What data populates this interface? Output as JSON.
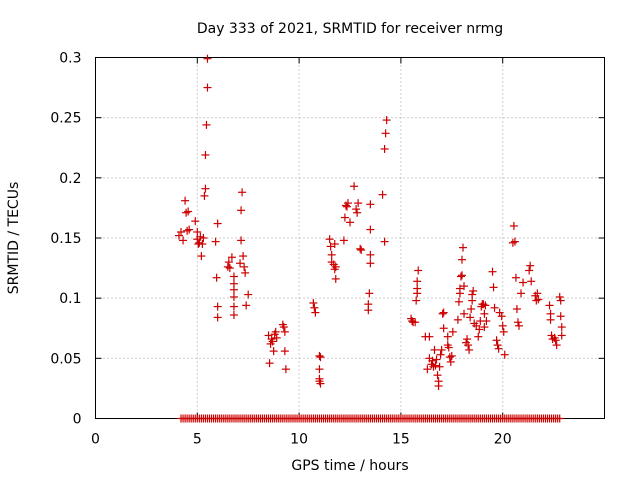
{
  "chart_data": {
    "type": "scatter",
    "title": "Day 333 of 2021, SRMTID for receiver nrmg",
    "xlabel": "GPS time / hours",
    "ylabel": "SRMTID / TECUs",
    "xlim": [
      0,
      25
    ],
    "ylim": [
      0,
      0.3
    ],
    "xticks": [
      0,
      5,
      10,
      15,
      20
    ],
    "yticks": [
      0,
      0.05,
      0.1,
      0.15,
      0.2,
      0.25,
      0.3
    ],
    "xtick_labels": [
      "0",
      "5",
      "10",
      "15",
      "20"
    ],
    "ytick_labels": [
      "0",
      "0.05",
      "0.1",
      "0.15",
      "0.2",
      "0.25",
      "0.3"
    ],
    "grid": true,
    "marker": "+",
    "color": "#cc0000",
    "series": [
      {
        "name": "SRMTID",
        "points": [
          [
            4.1,
            0.152
          ],
          [
            4.2,
            0.155
          ],
          [
            4.3,
            0.148
          ],
          [
            4.4,
            0.181
          ],
          [
            4.45,
            0.171
          ],
          [
            4.5,
            0.156
          ],
          [
            4.55,
            0.172
          ],
          [
            4.6,
            0.157
          ],
          [
            4.9,
            0.164
          ],
          [
            5.0,
            0.149
          ],
          [
            5.0,
            0.155
          ],
          [
            5.05,
            0.145
          ],
          [
            5.1,
            0.146
          ],
          [
            5.15,
            0.151
          ],
          [
            5.2,
            0.135
          ],
          [
            5.25,
            0.145
          ],
          [
            5.3,
            0.15
          ],
          [
            5.35,
            0.185
          ],
          [
            5.4,
            0.191
          ],
          [
            5.4,
            0.219
          ],
          [
            5.45,
            0.244
          ],
          [
            5.5,
            0.275
          ],
          [
            5.5,
            0.299
          ],
          [
            5.9,
            0.147
          ],
          [
            6.0,
            0.162
          ],
          [
            5.95,
            0.117
          ],
          [
            6.0,
            0.093
          ],
          [
            6.0,
            0.084
          ],
          [
            6.5,
            0.126
          ],
          [
            6.55,
            0.13
          ],
          [
            6.6,
            0.125
          ],
          [
            6.7,
            0.134
          ],
          [
            6.8,
            0.118
          ],
          [
            6.8,
            0.112
          ],
          [
            6.8,
            0.107
          ],
          [
            6.8,
            0.101
          ],
          [
            6.8,
            0.093
          ],
          [
            6.8,
            0.086
          ],
          [
            7.1,
            0.129
          ],
          [
            7.15,
            0.148
          ],
          [
            7.15,
            0.173
          ],
          [
            7.2,
            0.188
          ],
          [
            7.25,
            0.135
          ],
          [
            7.3,
            0.126
          ],
          [
            7.35,
            0.121
          ],
          [
            7.4,
            0.094
          ],
          [
            7.5,
            0.103
          ],
          [
            8.5,
            0.069
          ],
          [
            8.55,
            0.046
          ],
          [
            8.6,
            0.062
          ],
          [
            8.65,
            0.066
          ],
          [
            8.7,
            0.064
          ],
          [
            8.75,
            0.056
          ],
          [
            8.8,
            0.07
          ],
          [
            8.85,
            0.072
          ],
          [
            8.9,
            0.067
          ],
          [
            9.2,
            0.078
          ],
          [
            9.25,
            0.076
          ],
          [
            9.3,
            0.072
          ],
          [
            9.3,
            0.056
          ],
          [
            9.35,
            0.041
          ],
          [
            10.7,
            0.096
          ],
          [
            10.75,
            0.092
          ],
          [
            10.8,
            0.088
          ],
          [
            11.0,
            0.052
          ],
          [
            11.05,
            0.051
          ],
          [
            11.0,
            0.041
          ],
          [
            11.0,
            0.033
          ],
          [
            11.0,
            0.031
          ],
          [
            11.05,
            0.029
          ],
          [
            11.5,
            0.149
          ],
          [
            11.55,
            0.143
          ],
          [
            11.6,
            0.136
          ],
          [
            11.6,
            0.13
          ],
          [
            11.7,
            0.128
          ],
          [
            11.75,
            0.124
          ],
          [
            11.8,
            0.116
          ],
          [
            11.8,
            0.126
          ],
          [
            11.75,
            0.145
          ],
          [
            12.2,
            0.148
          ],
          [
            12.25,
            0.167
          ],
          [
            12.3,
            0.177
          ],
          [
            12.35,
            0.176
          ],
          [
            12.4,
            0.179
          ],
          [
            12.5,
            0.163
          ],
          [
            12.7,
            0.193
          ],
          [
            12.8,
            0.174
          ],
          [
            12.85,
            0.171
          ],
          [
            12.9,
            0.179
          ],
          [
            13.0,
            0.141
          ],
          [
            13.05,
            0.14
          ],
          [
            13.4,
            0.095
          ],
          [
            13.4,
            0.09
          ],
          [
            13.45,
            0.104
          ],
          [
            13.5,
            0.129
          ],
          [
            13.5,
            0.136
          ],
          [
            13.5,
            0.157
          ],
          [
            13.5,
            0.178
          ],
          [
            14.1,
            0.186
          ],
          [
            14.2,
            0.147
          ],
          [
            14.2,
            0.224
          ],
          [
            14.25,
            0.237
          ],
          [
            14.3,
            0.248
          ],
          [
            15.5,
            0.083
          ],
          [
            15.55,
            0.081
          ],
          [
            15.6,
            0.08
          ],
          [
            15.7,
            0.08
          ],
          [
            15.75,
            0.098
          ],
          [
            15.8,
            0.104
          ],
          [
            15.8,
            0.108
          ],
          [
            15.8,
            0.114
          ],
          [
            15.85,
            0.123
          ],
          [
            16.2,
            0.068
          ],
          [
            16.3,
            0.041
          ],
          [
            16.4,
            0.05
          ],
          [
            16.4,
            0.068
          ],
          [
            16.5,
            0.045
          ],
          [
            16.55,
            0.048
          ],
          [
            16.6,
            0.043
          ],
          [
            16.65,
            0.057
          ],
          [
            16.7,
            0.044
          ],
          [
            16.75,
            0.049
          ],
          [
            16.8,
            0.036
          ],
          [
            16.85,
            0.031
          ],
          [
            16.85,
            0.027
          ],
          [
            16.9,
            0.043
          ],
          [
            16.95,
            0.053
          ],
          [
            17.0,
            0.057
          ],
          [
            17.05,
            0.087
          ],
          [
            17.1,
            0.088
          ],
          [
            17.1,
            0.075
          ],
          [
            17.3,
            0.068
          ],
          [
            17.3,
            0.061
          ],
          [
            17.35,
            0.059
          ],
          [
            17.4,
            0.051
          ],
          [
            17.45,
            0.047
          ],
          [
            17.5,
            0.052
          ],
          [
            17.55,
            0.072
          ],
          [
            17.8,
            0.082
          ],
          [
            17.85,
            0.097
          ],
          [
            17.9,
            0.104
          ],
          [
            17.9,
            0.108
          ],
          [
            17.95,
            0.118
          ],
          [
            18.0,
            0.119
          ],
          [
            18.0,
            0.132
          ],
          [
            18.05,
            0.142
          ],
          [
            18.1,
            0.11
          ],
          [
            18.1,
            0.087
          ],
          [
            18.2,
            0.063
          ],
          [
            18.25,
            0.066
          ],
          [
            18.3,
            0.061
          ],
          [
            18.35,
            0.057
          ],
          [
            18.4,
            0.084
          ],
          [
            18.45,
            0.091
          ],
          [
            18.5,
            0.098
          ],
          [
            18.5,
            0.103
          ],
          [
            18.55,
            0.106
          ],
          [
            18.6,
            0.079
          ],
          [
            18.7,
            0.077
          ],
          [
            18.8,
            0.068
          ],
          [
            18.85,
            0.074
          ],
          [
            18.9,
            0.081
          ],
          [
            18.95,
            0.093
          ],
          [
            19.0,
            0.095
          ],
          [
            19.05,
            0.095
          ],
          [
            19.1,
            0.087
          ],
          [
            19.15,
            0.094
          ],
          [
            19.1,
            0.076
          ],
          [
            19.2,
            0.081
          ],
          [
            19.5,
            0.122
          ],
          [
            19.55,
            0.109
          ],
          [
            19.6,
            0.092
          ],
          [
            19.7,
            0.065
          ],
          [
            19.75,
            0.061
          ],
          [
            19.8,
            0.058
          ],
          [
            19.85,
            0.088
          ],
          [
            19.95,
            0.085
          ],
          [
            20.0,
            0.077
          ],
          [
            20.05,
            0.072
          ],
          [
            20.1,
            0.053
          ],
          [
            20.5,
            0.146
          ],
          [
            20.55,
            0.16
          ],
          [
            20.6,
            0.147
          ],
          [
            20.65,
            0.117
          ],
          [
            20.7,
            0.091
          ],
          [
            20.75,
            0.08
          ],
          [
            20.8,
            0.077
          ],
          [
            20.9,
            0.104
          ],
          [
            21.0,
            0.113
          ],
          [
            21.3,
            0.123
          ],
          [
            21.35,
            0.127
          ],
          [
            21.4,
            0.114
          ],
          [
            21.6,
            0.102
          ],
          [
            21.65,
            0.098
          ],
          [
            21.7,
            0.104
          ],
          [
            21.75,
            0.099
          ],
          [
            22.3,
            0.094
          ],
          [
            22.35,
            0.087
          ],
          [
            22.35,
            0.082
          ],
          [
            22.4,
            0.069
          ],
          [
            22.45,
            0.066
          ],
          [
            22.55,
            0.067
          ],
          [
            22.6,
            0.065
          ],
          [
            22.65,
            0.061
          ],
          [
            22.8,
            0.101
          ],
          [
            22.85,
            0.098
          ],
          [
            22.85,
            0.085
          ],
          [
            22.9,
            0.076
          ],
          [
            22.9,
            0.069
          ]
        ],
        "zero_points": [
          4.2,
          4.3,
          4.4,
          4.5,
          4.6,
          4.7,
          4.8,
          4.9,
          5.0,
          5.1,
          5.2,
          5.3,
          5.4,
          5.5,
          5.6,
          5.7,
          5.8,
          5.9,
          6.0,
          6.1,
          6.2,
          6.3,
          6.4,
          6.5,
          6.6,
          6.7,
          6.8,
          6.9,
          7.0,
          7.1,
          7.2,
          7.3,
          7.4,
          7.5,
          7.6,
          7.7,
          7.8,
          7.9,
          8.0,
          8.1,
          8.2,
          8.3,
          8.4,
          8.5,
          8.6,
          8.7,
          8.8,
          8.9,
          9.0,
          9.1,
          9.2,
          9.3,
          9.4,
          9.5,
          9.6,
          9.7,
          9.8,
          9.9,
          10.0,
          10.1,
          10.2,
          10.3,
          10.4,
          10.5,
          10.6,
          10.7,
          10.8,
          10.9,
          11.0,
          11.1,
          11.2,
          11.3,
          11.4,
          11.5,
          11.6,
          11.7,
          11.8,
          11.9,
          12.0,
          12.1,
          12.2,
          12.3,
          12.4,
          12.5,
          12.6,
          12.7,
          12.8,
          12.9,
          13.0,
          13.1,
          13.2,
          13.3,
          13.4,
          13.5,
          13.6,
          13.7,
          13.8,
          13.9,
          14.0,
          14.1,
          14.2,
          14.3,
          14.4,
          14.5,
          14.6,
          14.7,
          14.8,
          14.9,
          15.0,
          15.1,
          15.2,
          15.3,
          15.4,
          15.5,
          15.6,
          15.7,
          15.8,
          15.9,
          16.0,
          16.1,
          16.2,
          16.3,
          16.4,
          16.5,
          16.6,
          16.7,
          16.8,
          16.9,
          17.0,
          17.1,
          17.2,
          17.3,
          17.4,
          17.5,
          17.6,
          17.7,
          17.8,
          17.9,
          18.0,
          18.1,
          18.2,
          18.3,
          18.4,
          18.5,
          18.6,
          18.7,
          18.8,
          18.9,
          19.0,
          19.1,
          19.2,
          19.3,
          19.4,
          19.5,
          19.6,
          19.7,
          19.8,
          19.9,
          20.0,
          20.1,
          20.2,
          20.3,
          20.4,
          20.5,
          20.6,
          20.7,
          20.8,
          20.9,
          21.0,
          21.1,
          21.2,
          21.3,
          21.4,
          21.5,
          21.6,
          21.7,
          21.8,
          21.9,
          22.0,
          22.1,
          22.2,
          22.3,
          22.4,
          22.5,
          22.6,
          22.7,
          22.8
        ]
      }
    ]
  }
}
